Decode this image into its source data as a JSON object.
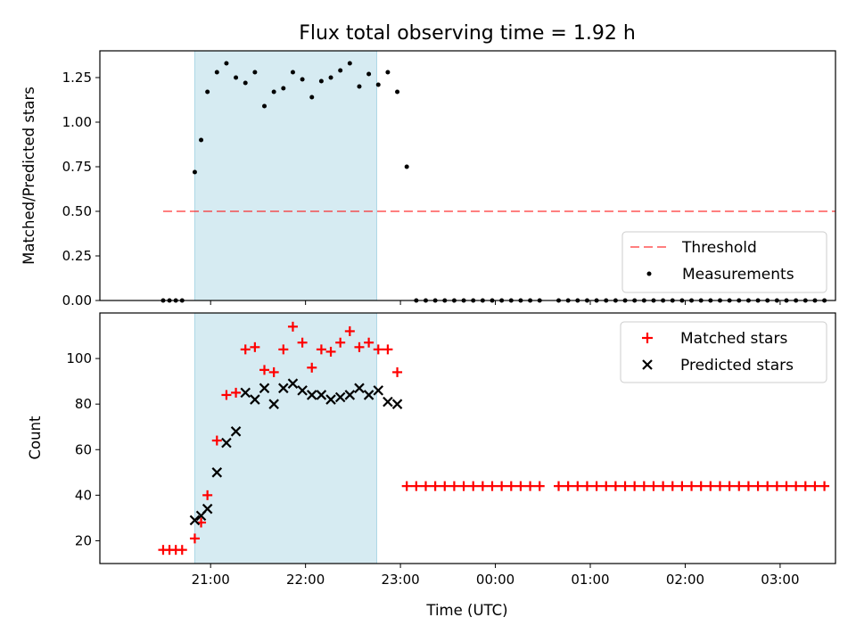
{
  "chart_data": [
    {
      "type": "scatter",
      "panel": "top",
      "title": "Flux total observing time = 1.92 h",
      "ylabel": "Matched/Predicted stars",
      "ylim": [
        0,
        1.4
      ],
      "yticks": [
        "0.00",
        "0.25",
        "0.50",
        "0.75",
        "1.00",
        "1.25"
      ],
      "xlim_minutes": [
        -70,
        395
      ],
      "highlight_span": {
        "start": "20:50",
        "end": "22:45"
      },
      "threshold": {
        "value": 0.5,
        "x_start": "20:30",
        "x_end": "03:35"
      },
      "legend_placement": "lower-right",
      "legend": [
        "Threshold",
        "Measurements"
      ],
      "series": [
        {
          "name": "Measurements",
          "x": [
            "20:30",
            "20:34",
            "20:38",
            "20:42",
            "20:50",
            "20:54",
            "20:58",
            "21:04",
            "21:10",
            "21:16",
            "21:22",
            "21:28",
            "21:34",
            "21:40",
            "21:46",
            "21:52",
            "21:58",
            "22:04",
            "22:10",
            "22:16",
            "22:22",
            "22:28",
            "22:34",
            "22:40",
            "22:46",
            "22:52",
            "22:58",
            "23:04",
            "23:10",
            "23:16",
            "23:22",
            "23:28",
            "23:34",
            "23:40",
            "23:46",
            "23:52",
            "23:58",
            "00:04",
            "00:10",
            "00:16",
            "00:22",
            "00:28",
            "00:40",
            "00:46",
            "00:52",
            "00:58",
            "01:04",
            "01:10",
            "01:16",
            "01:22",
            "01:28",
            "01:34",
            "01:40",
            "01:46",
            "01:52",
            "01:58",
            "02:04",
            "02:10",
            "02:16",
            "02:22",
            "02:28",
            "02:34",
            "02:40",
            "02:46",
            "02:52",
            "02:58",
            "03:04",
            "03:10",
            "03:16",
            "03:22",
            "03:28"
          ],
          "y": [
            0,
            0,
            0,
            0,
            0.72,
            0.9,
            1.17,
            1.28,
            1.33,
            1.25,
            1.22,
            1.28,
            1.09,
            1.17,
            1.19,
            1.28,
            1.24,
            1.14,
            1.23,
            1.25,
            1.29,
            1.33,
            1.2,
            1.27,
            1.21,
            1.28,
            1.17,
            0.75,
            0,
            0,
            0,
            0,
            0,
            0,
            0,
            0,
            0,
            0,
            0,
            0,
            0,
            0,
            0,
            0,
            0,
            0,
            0,
            0,
            0,
            0,
            0,
            0,
            0,
            0,
            0,
            0,
            0,
            0,
            0,
            0,
            0,
            0,
            0,
            0,
            0,
            0,
            0,
            0,
            0,
            0,
            0
          ]
        }
      ]
    },
    {
      "type": "scatter",
      "panel": "bottom",
      "xlabel": "Time (UTC)",
      "ylabel": "Count",
      "ylim": [
        10,
        120
      ],
      "yticks": [
        "20",
        "40",
        "60",
        "80",
        "100"
      ],
      "xticks": [
        "21:00",
        "22:00",
        "23:00",
        "00:00",
        "01:00",
        "02:00",
        "03:00"
      ],
      "highlight_span": {
        "start": "20:50",
        "end": "22:45"
      },
      "legend_placement": "upper-right",
      "legend": [
        "Matched stars",
        "Predicted stars"
      ],
      "series": [
        {
          "name": "Matched stars",
          "marker": "+",
          "color": "#ff0000",
          "x": [
            "20:30",
            "20:34",
            "20:38",
            "20:42",
            "20:50",
            "20:54",
            "20:58",
            "21:04",
            "21:10",
            "21:16",
            "21:22",
            "21:28",
            "21:34",
            "21:40",
            "21:46",
            "21:52",
            "21:58",
            "22:04",
            "22:10",
            "22:16",
            "22:22",
            "22:28",
            "22:34",
            "22:40",
            "22:46",
            "22:52",
            "22:58",
            "23:04",
            "23:10",
            "23:16",
            "23:22",
            "23:28",
            "23:34",
            "23:40",
            "23:46",
            "23:52",
            "23:58",
            "00:04",
            "00:10",
            "00:16",
            "00:22",
            "00:28",
            "00:40",
            "00:46",
            "00:52",
            "00:58",
            "01:04",
            "01:10",
            "01:16",
            "01:22",
            "01:28",
            "01:34",
            "01:40",
            "01:46",
            "01:52",
            "01:58",
            "02:04",
            "02:10",
            "02:16",
            "02:22",
            "02:28",
            "02:34",
            "02:40",
            "02:46",
            "02:52",
            "02:58",
            "03:04",
            "03:10",
            "03:16",
            "03:22",
            "03:28"
          ],
          "y": [
            16,
            16,
            16,
            16,
            21,
            28,
            40,
            64,
            84,
            85,
            104,
            105,
            95,
            94,
            104,
            114,
            107,
            96,
            104,
            103,
            107,
            112,
            105,
            107,
            104,
            104,
            94,
            44,
            44,
            44,
            44,
            44,
            44,
            44,
            44,
            44,
            44,
            44,
            44,
            44,
            44,
            44,
            44,
            44,
            44,
            44,
            44,
            44,
            44,
            44,
            44,
            44,
            44,
            44,
            44,
            44,
            44,
            44,
            44,
            44,
            44,
            44,
            44,
            44,
            44,
            44,
            44,
            44,
            44,
            44,
            44
          ]
        },
        {
          "name": "Predicted stars",
          "marker": "x",
          "color": "#000000",
          "x": [
            "20:50",
            "20:54",
            "20:58",
            "21:04",
            "21:10",
            "21:16",
            "21:22",
            "21:28",
            "21:34",
            "21:40",
            "21:46",
            "21:52",
            "21:58",
            "22:04",
            "22:10",
            "22:16",
            "22:22",
            "22:28",
            "22:34",
            "22:40",
            "22:46",
            "22:52",
            "22:58"
          ],
          "y": [
            29,
            31,
            34,
            50,
            63,
            68,
            85,
            82,
            87,
            80,
            87,
            89,
            86,
            84,
            84,
            82,
            83,
            84,
            87,
            84,
            86,
            81,
            80
          ]
        }
      ]
    }
  ]
}
